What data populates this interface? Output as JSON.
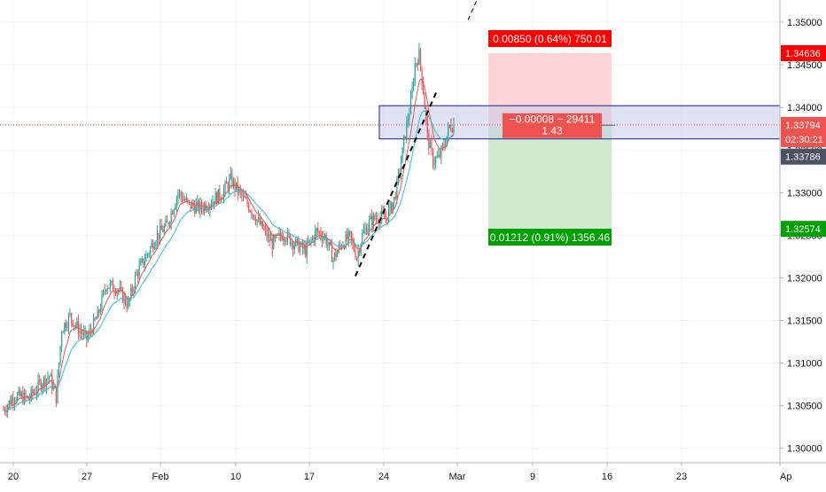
{
  "chart_data": {
    "type": "candlestick",
    "title": "",
    "xlabel": "",
    "ylabel": "",
    "ylim": [
      1.2983,
      1.3526
    ],
    "grid": true,
    "x_ticks": [
      "20",
      "27",
      "Feb",
      "10",
      "17",
      "24",
      "Mar",
      "9",
      "16",
      "23",
      "Ap"
    ],
    "y_ticks": [
      "1.35000",
      "1.34500",
      "1.34000",
      "1.33500",
      "1.33000",
      "1.32500",
      "1.32000",
      "1.31500",
      "1.31000",
      "1.30500",
      "1.30000"
    ],
    "y_tick_values": [
      1.35,
      1.345,
      1.34,
      1.335,
      1.33,
      1.325,
      1.32,
      1.315,
      1.31,
      1.305,
      1.3
    ],
    "anchors": [
      [
        0,
        1.3045
      ],
      [
        8,
        1.3062
      ],
      [
        18,
        1.3058
      ],
      [
        26,
        1.3075
      ],
      [
        33,
        1.3085
      ],
      [
        38,
        1.306
      ],
      [
        42,
        1.314
      ],
      [
        48,
        1.3155
      ],
      [
        54,
        1.314
      ],
      [
        60,
        1.3128
      ],
      [
        68,
        1.3155
      ],
      [
        74,
        1.3192
      ],
      [
        82,
        1.3188
      ],
      [
        90,
        1.3168
      ],
      [
        96,
        1.3205
      ],
      [
        102,
        1.3222
      ],
      [
        110,
        1.3248
      ],
      [
        118,
        1.3262
      ],
      [
        126,
        1.33
      ],
      [
        134,
        1.3285
      ],
      [
        142,
        1.3282
      ],
      [
        150,
        1.329
      ],
      [
        158,
        1.33
      ],
      [
        164,
        1.3315
      ],
      [
        170,
        1.33
      ],
      [
        178,
        1.3282
      ],
      [
        186,
        1.326
      ],
      [
        194,
        1.324
      ],
      [
        202,
        1.3252
      ],
      [
        210,
        1.324
      ],
      [
        218,
        1.3232
      ],
      [
        226,
        1.3255
      ],
      [
        232,
        1.3248
      ],
      [
        238,
        1.3222
      ],
      [
        244,
        1.324
      ],
      [
        250,
        1.3248
      ],
      [
        255,
        1.3225
      ],
      [
        259,
        1.325
      ],
      [
        264,
        1.3265
      ],
      [
        270,
        1.3272
      ],
      [
        276,
        1.327
      ],
      [
        282,
        1.3292
      ],
      [
        286,
        1.3325
      ],
      [
        290,
        1.337
      ],
      [
        294,
        1.3405
      ],
      [
        297,
        1.345
      ],
      [
        300,
        1.3462
      ],
      [
        303,
        1.342
      ],
      [
        306,
        1.3365
      ],
      [
        310,
        1.3338
      ],
      [
        314,
        1.334
      ],
      [
        318,
        1.3355
      ],
      [
        322,
        1.3378
      ],
      [
        325,
        1.3379
      ]
    ],
    "ema_fast_period": 9,
    "ema_slow_period": 21,
    "price_line": 1.33794,
    "zone": {
      "top": 1.3402,
      "bottom": 1.3363
    },
    "trend_line": [
      [
        254,
        1.3202
      ],
      [
        313,
        1.342
      ]
    ],
    "position": {
      "entry": 1.33786,
      "target": 1.32574,
      "stop": 1.34636,
      "stop_label": "0.00850 (0.64%) 750.01",
      "target_label": "0.01212 (0.91%) 1356.46",
      "center_label_1": "−0.00008 ~ 29411",
      "center_label_2": "1.43"
    },
    "axis_labels": {
      "stop_price": "1.34636",
      "last_price": "1.33794",
      "countdown": "02:30:21",
      "entry_price": "1.33786",
      "target_price": "1.32574"
    }
  },
  "colors": {
    "up": "#26a69a",
    "down": "#ef5350",
    "ema_fast": "#ef5350",
    "ema_slow": "#26c6da",
    "grid": "#f0f3fa",
    "axis_text": "#131722",
    "zone_fill": "#c5cae9",
    "zone_border": "#1a237e",
    "profit_fill": "#c8e6c9",
    "loss_fill": "#ffcdd2",
    "profit_label": "#00a000",
    "loss_label": "#ff0000",
    "price_line": "#ef5350"
  }
}
